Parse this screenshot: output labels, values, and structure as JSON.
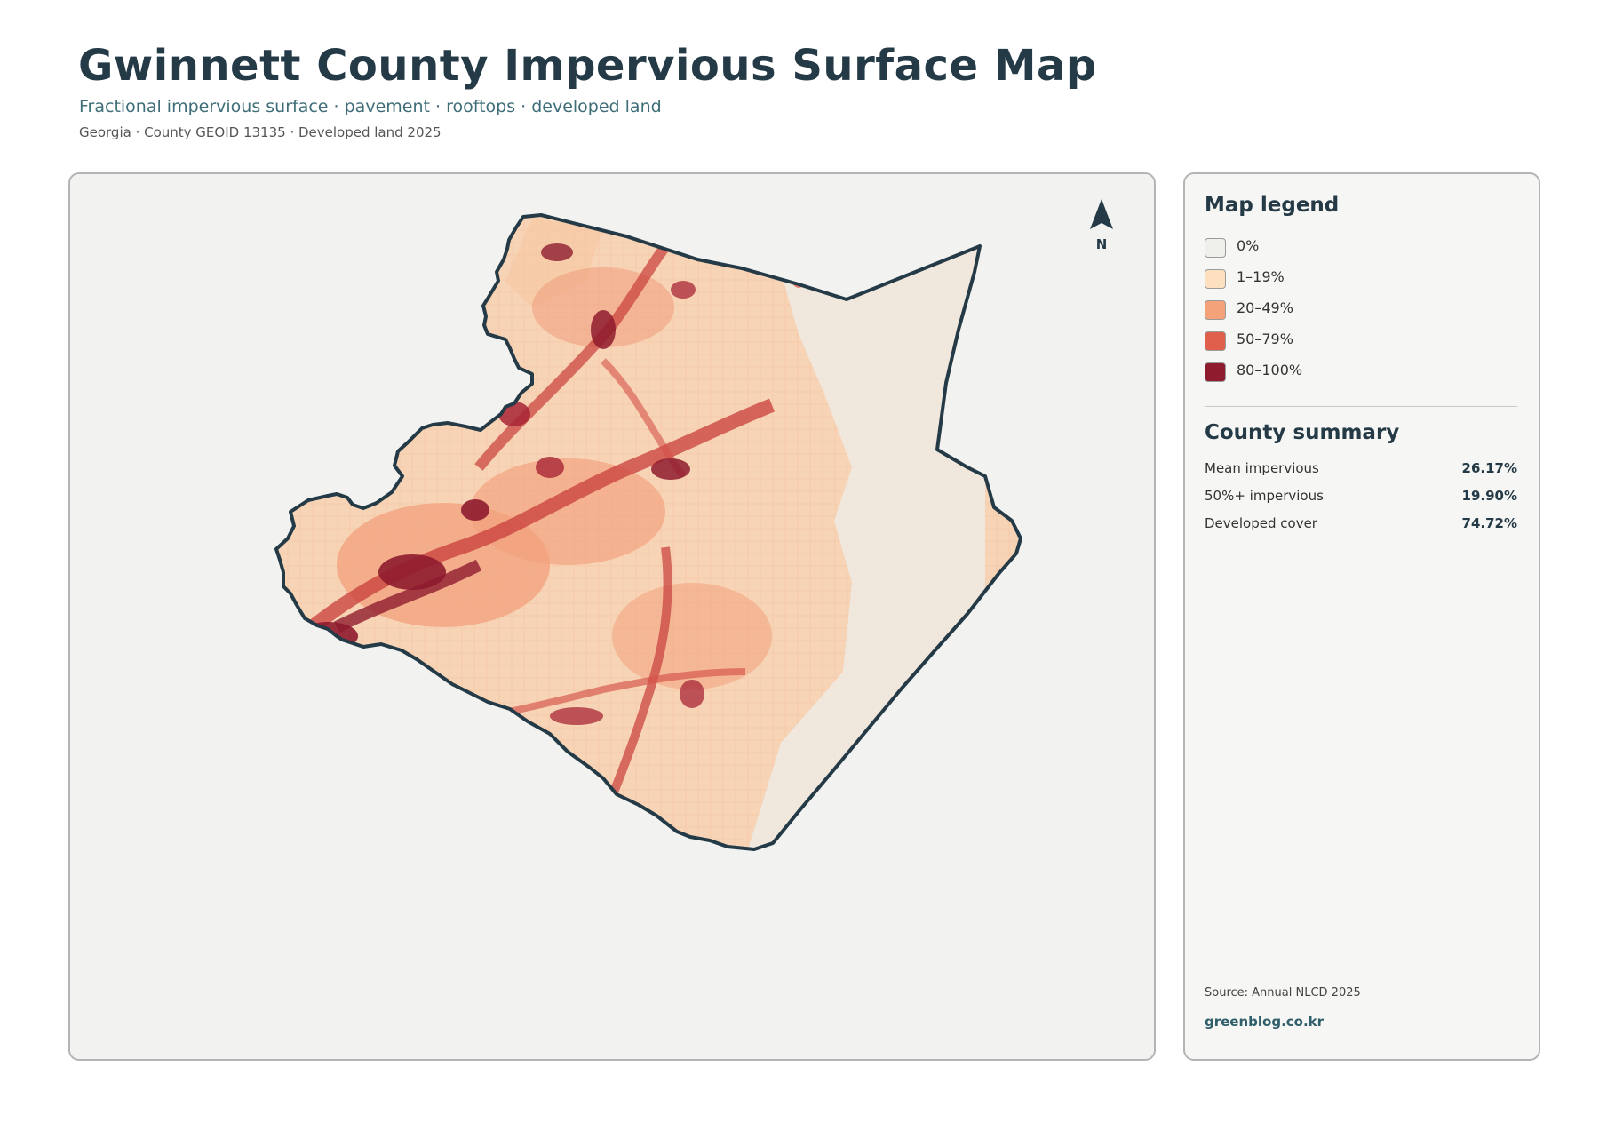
{
  "header": {
    "title": "Gwinnett County Impervious Surface Map",
    "subtitle": "Fractional impervious surface · pavement · rooftops · developed land",
    "meta": "Georgia · County GEOID 13135 · Developed land 2025"
  },
  "map": {
    "north_label": "N",
    "background_color": "#f2f2f0",
    "outline_color": "#243a46",
    "icons": [
      "north-arrow-icon"
    ]
  },
  "legend": {
    "title": "Map legend",
    "items": [
      {
        "label": "0%",
        "color": "#efefec"
      },
      {
        "label": "1–19%",
        "color": "#fde0c0"
      },
      {
        "label": "20–49%",
        "color": "#f4a27a"
      },
      {
        "label": "50–79%",
        "color": "#df5f4c"
      },
      {
        "label": "80–100%",
        "color": "#8e1b2e"
      }
    ]
  },
  "summary": {
    "title": "County summary",
    "stats": [
      {
        "label": "Mean impervious",
        "value": "26.17%"
      },
      {
        "label": "50%+ impervious",
        "value": "19.90%"
      },
      {
        "label": "Developed cover",
        "value": "74.72%"
      }
    ]
  },
  "footer": {
    "source": "Source: Annual NLCD 2025",
    "site": "greenblog.co.kr"
  }
}
